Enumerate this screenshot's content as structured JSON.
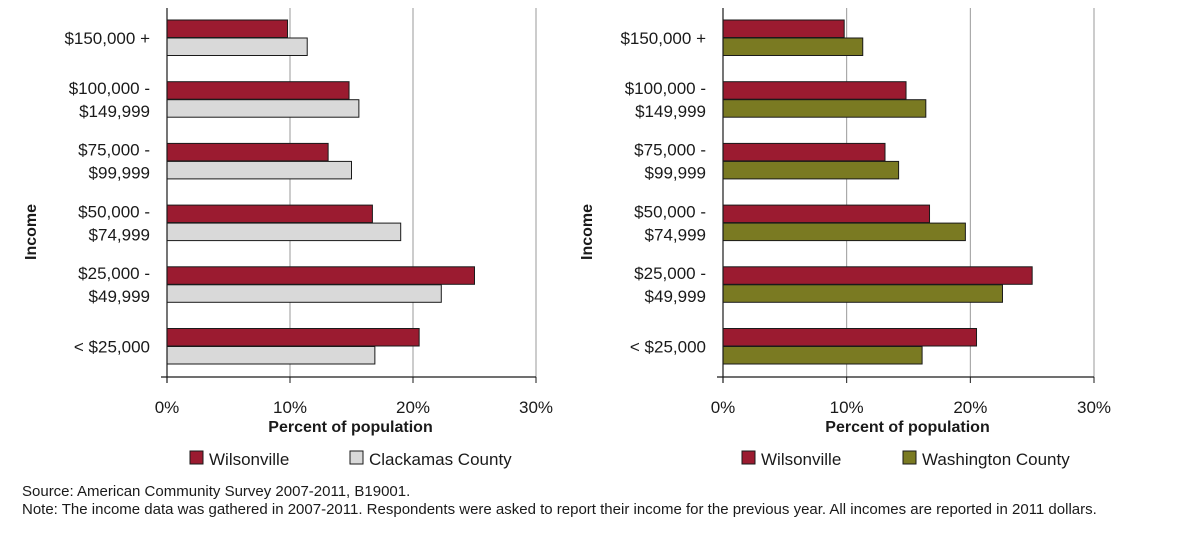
{
  "chart_data": [
    {
      "type": "bar",
      "orientation": "horizontal",
      "categories": [
        "< $25,000",
        "$25,000 - $49,999",
        "$50,000 - $74,999",
        "$75,000 - $99,999",
        "$100,000 - $149,999",
        "$150,000 +"
      ],
      "category_lines": [
        [
          "< $25,000"
        ],
        [
          "$25,000 -",
          "$49,999"
        ],
        [
          "$50,000 -",
          "$74,999"
        ],
        [
          "$75,000 -",
          "$99,999"
        ],
        [
          "$100,000 -",
          "$149,999"
        ],
        [
          "$150,000 +"
        ]
      ],
      "series": [
        {
          "name": "Wilsonville",
          "color": "#9b1b30",
          "values": [
            20.5,
            25.0,
            16.7,
            13.1,
            14.8,
            9.8
          ]
        },
        {
          "name": "Clackamas County",
          "color": "#d9d9d9",
          "values": [
            16.9,
            22.3,
            19.0,
            15.0,
            15.6,
            11.4
          ]
        }
      ],
      "xlabel": "Percent of population",
      "ylabel": "Income",
      "xlim": [
        0,
        30
      ],
      "xticks": [
        0,
        10,
        20,
        30
      ],
      "xtick_labels": [
        "0%",
        "10%",
        "20%",
        "30%"
      ],
      "grid": "vertical",
      "legend_position": "bottom"
    },
    {
      "type": "bar",
      "orientation": "horizontal",
      "categories": [
        "< $25,000",
        "$25,000 - $49,999",
        "$50,000 - $74,999",
        "$75,000 - $99,999",
        "$100,000 - $149,999",
        "$150,000 +"
      ],
      "category_lines": [
        [
          "< $25,000"
        ],
        [
          "$25,000 -",
          "$49,999"
        ],
        [
          "$50,000 -",
          "$74,999"
        ],
        [
          "$75,000 -",
          "$99,999"
        ],
        [
          "$100,000 -",
          "$149,999"
        ],
        [
          "$150,000 +"
        ]
      ],
      "series": [
        {
          "name": "Wilsonville",
          "color": "#9b1b30",
          "values": [
            20.5,
            25.0,
            16.7,
            13.1,
            14.8,
            9.8
          ]
        },
        {
          "name": "Washington County",
          "color": "#7a7a22",
          "values": [
            16.1,
            22.6,
            19.6,
            14.2,
            16.4,
            11.3
          ]
        }
      ],
      "xlabel": "Percent of population",
      "ylabel": "Income",
      "xlim": [
        0,
        30
      ],
      "xticks": [
        0,
        10,
        20,
        30
      ],
      "xtick_labels": [
        "0%",
        "10%",
        "20%",
        "30%"
      ],
      "grid": "vertical",
      "legend_position": "bottom"
    }
  ],
  "footer": {
    "source": "Source: American Community Survey 2007-2011, B19001.",
    "note": "Note: The income data was gathered in 2007-2011. Respondents were asked to report their income for the previous year. All incomes are reported in 2011 dollars."
  }
}
